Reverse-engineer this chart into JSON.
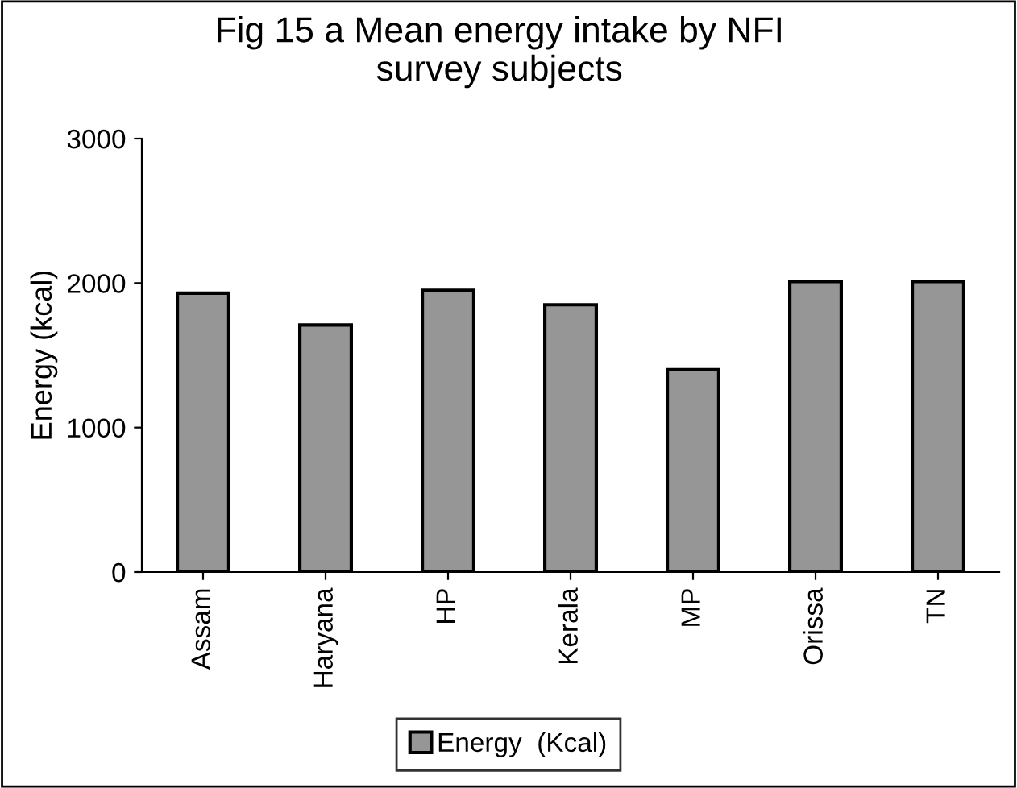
{
  "chart_data": {
    "type": "bar",
    "title": "Fig 15 a Mean energy intake by NFI\nsurvey subjects",
    "ylabel": "Energy (kcal)",
    "categories": [
      "Assam",
      "Haryana",
      "HP",
      "Kerala",
      "MP",
      "Orissa",
      "TN"
    ],
    "series": [
      {
        "name": "Energy  (Kcal)",
        "color": "#969696",
        "values": [
          1930,
          1710,
          1950,
          1850,
          1400,
          2010,
          2010
        ]
      }
    ],
    "ylim": [
      0,
      3000
    ],
    "yticks": [
      0,
      1000,
      2000,
      3000
    ],
    "grid": false,
    "legend": "bottom"
  }
}
